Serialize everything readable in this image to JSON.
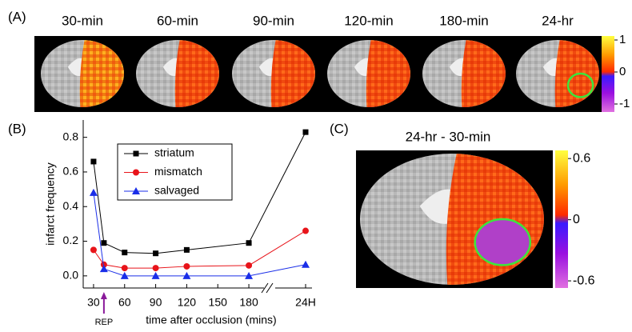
{
  "panel_a": {
    "label": "(A)",
    "timepoints": [
      "30-min",
      "60-min",
      "90-min",
      "120-min",
      "180-min",
      "24-hr"
    ],
    "colorbar": {
      "lim": [
        -1.25,
        1.125
      ],
      "ticks": [
        1,
        0,
        -1
      ]
    }
  },
  "chart_data": {
    "type": "line",
    "label": "(B)",
    "xlabel": "time after occlusion (mins)",
    "ylabel": "infarct frequency",
    "x": [
      30,
      40,
      60,
      90,
      120,
      180,
      1440
    ],
    "xlim": [
      20,
      1450
    ],
    "axis_break": [
      190,
      1400
    ],
    "xticks": [
      30,
      60,
      90,
      120,
      150,
      180,
      {
        "value": 1440,
        "label": "24H"
      }
    ],
    "ylim": [
      -0.07,
      0.9
    ],
    "yticks": [
      {
        "value": 0,
        "label": "0.0"
      },
      0.2,
      0.4,
      0.6,
      0.8
    ],
    "series": [
      {
        "name": "striatum",
        "color": "#000000",
        "marker": "square",
        "values": [
          0.66,
          0.19,
          0.135,
          0.13,
          0.15,
          0.19,
          0.83
        ]
      },
      {
        "name": "mismatch",
        "color": "#e8141a",
        "marker": "circle",
        "values": [
          0.15,
          0.065,
          0.045,
          0.045,
          0.055,
          0.06,
          0.26
        ]
      },
      {
        "name": "salvaged",
        "color": "#1a2ee8",
        "marker": "triangle",
        "values": [
          0.48,
          0.04,
          0.0,
          0.0,
          0.0,
          0.0,
          0.065
        ]
      }
    ],
    "annotation": {
      "text": "REP",
      "x": 40,
      "color": "#8a1a9a"
    }
  },
  "panel_c": {
    "label": "(C)",
    "title": "24-hr - 30-min",
    "colorbar": {
      "lim": [
        -0.67,
        0.68
      ],
      "ticks": [
        0.6,
        0,
        -0.6
      ]
    }
  }
}
